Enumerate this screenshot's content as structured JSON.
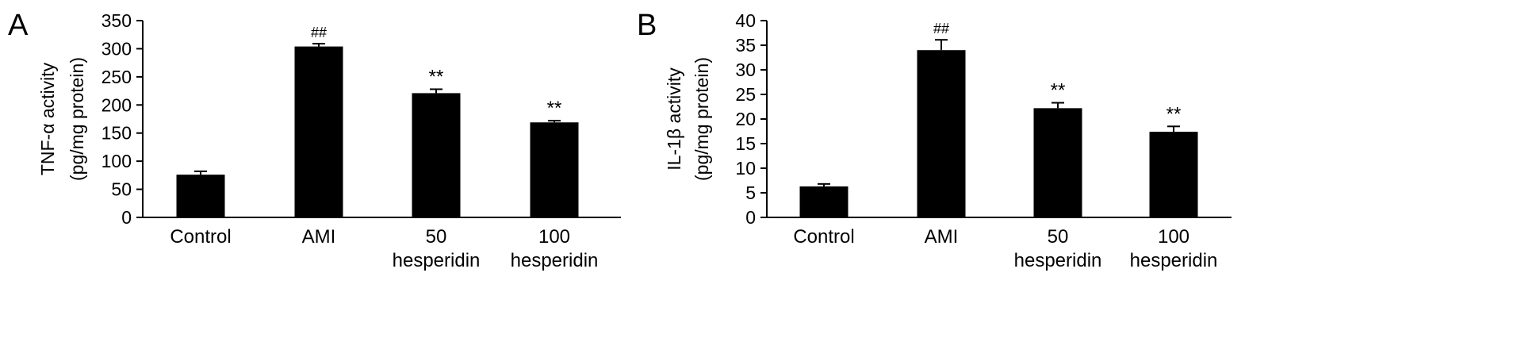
{
  "chart_data": [
    {
      "type": "bar",
      "panel_label": "A",
      "categories": [
        "Control",
        "AMI",
        "50\nhesperidin",
        "100\nhesperidin"
      ],
      "values": [
        76,
        304,
        221,
        169
      ],
      "errors": [
        6,
        5,
        7,
        3
      ],
      "annotations": [
        "",
        "##",
        "**",
        "**"
      ],
      "ylabel": [
        "TNF-α activity",
        "(pg/mg protein)"
      ],
      "ylim": [
        0,
        350
      ],
      "yticks": [
        0,
        50,
        100,
        150,
        200,
        250,
        300,
        350
      ],
      "color": "#000000",
      "grid": false
    },
    {
      "type": "bar",
      "panel_label": "B",
      "categories": [
        "Control",
        "AMI",
        "50\nhesperidin",
        "100\nhesperidin"
      ],
      "values": [
        6.3,
        34,
        22.2,
        17.4
      ],
      "errors": [
        0.5,
        2.1,
        1.1,
        1.1
      ],
      "annotations": [
        "",
        "##",
        "**",
        "**"
      ],
      "ylabel": [
        "IL-1β activity",
        "(pg/mg protein)"
      ],
      "ylim": [
        0,
        40
      ],
      "yticks": [
        0,
        5,
        10,
        15,
        20,
        25,
        30,
        35,
        40
      ],
      "color": "#000000",
      "grid": false
    }
  ]
}
